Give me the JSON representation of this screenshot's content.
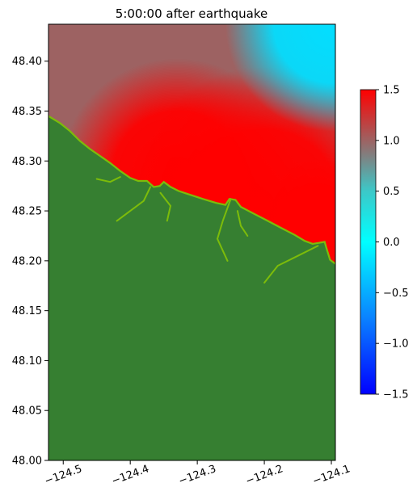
{
  "chart_data": {
    "type": "heatmap",
    "title": "5:00:00 after earthquake",
    "xlabel": "",
    "ylabel": "",
    "xlim": [
      -124.522,
      -124.094
    ],
    "ylim": [
      48.0,
      48.437
    ],
    "xticks": [
      {
        "value": -124.5,
        "label": "−124.5"
      },
      {
        "value": -124.4,
        "label": "−124.4"
      },
      {
        "value": -124.3,
        "label": "−124.3"
      },
      {
        "value": -124.2,
        "label": "−124.2"
      },
      {
        "value": -124.1,
        "label": "−124.1"
      }
    ],
    "yticks": [
      {
        "value": 48.0,
        "label": "48.00"
      },
      {
        "value": 48.05,
        "label": "48.05"
      },
      {
        "value": 48.1,
        "label": "48.10"
      },
      {
        "value": 48.15,
        "label": "48.15"
      },
      {
        "value": 48.2,
        "label": "48.20"
      },
      {
        "value": 48.25,
        "label": "48.25"
      },
      {
        "value": 48.3,
        "label": "48.30"
      },
      {
        "value": 48.35,
        "label": "48.35"
      },
      {
        "value": 48.4,
        "label": "48.40"
      }
    ],
    "colorbar": {
      "range": [
        -1.5,
        1.5
      ],
      "ticks": [
        {
          "value": 1.5,
          "label": "1.5"
        },
        {
          "value": 1.0,
          "label": "1.0"
        },
        {
          "value": 0.5,
          "label": "0.5"
        },
        {
          "value": 0.0,
          "label": "0.0"
        },
        {
          "value": -0.5,
          "label": "−0.5"
        },
        {
          "value": -1.0,
          "label": "−1.0"
        },
        {
          "value": -1.5,
          "label": "−1.5"
        }
      ],
      "colors": [
        {
          "value": -1.5,
          "color": "#0000ff"
        },
        {
          "value": -0.75,
          "color": "#0a82ff"
        },
        {
          "value": 0.0,
          "color": "#00ffff"
        },
        {
          "value": 0.5,
          "color": "#3cc8c8"
        },
        {
          "value": 0.85,
          "color": "#808080"
        },
        {
          "value": 1.5,
          "color": "#ff0000"
        }
      ]
    },
    "land_color": "#367f31",
    "shore_color": "#7dbc0a",
    "coastline": [
      [
        -124.522,
        48.345
      ],
      [
        -124.505,
        48.338
      ],
      [
        -124.49,
        48.33
      ],
      [
        -124.475,
        48.32
      ],
      [
        -124.46,
        48.312
      ],
      [
        -124.445,
        48.305
      ],
      [
        -124.43,
        48.298
      ],
      [
        -124.415,
        48.29
      ],
      [
        -124.4,
        48.283
      ],
      [
        -124.388,
        48.28
      ],
      [
        -124.375,
        48.28
      ],
      [
        -124.365,
        48.274
      ],
      [
        -124.356,
        48.275
      ],
      [
        -124.35,
        48.279
      ],
      [
        -124.34,
        48.274
      ],
      [
        -124.328,
        48.27
      ],
      [
        -124.31,
        48.266
      ],
      [
        -124.292,
        48.262
      ],
      [
        -124.272,
        48.258
      ],
      [
        -124.258,
        48.256
      ],
      [
        -124.252,
        48.262
      ],
      [
        -124.243,
        48.261
      ],
      [
        -124.235,
        48.254
      ],
      [
        -124.215,
        48.247
      ],
      [
        -124.195,
        48.24
      ],
      [
        -124.175,
        48.233
      ],
      [
        -124.155,
        48.226
      ],
      [
        -124.14,
        48.22
      ],
      [
        -124.128,
        48.217
      ],
      [
        -124.118,
        48.218
      ],
      [
        -124.11,
        48.219
      ],
      [
        -124.107,
        48.212
      ],
      [
        -124.102,
        48.201
      ],
      [
        -124.094,
        48.197
      ]
    ],
    "water_field": {
      "background": 1.0,
      "highs": [
        {
          "lon": -124.33,
          "lat": 48.285,
          "value": 1.5,
          "radius_deg": 0.11
        },
        {
          "lon": -124.2,
          "lat": 48.255,
          "value": 1.5,
          "radius_deg": 0.13
        },
        {
          "lon": -124.12,
          "lat": 48.24,
          "value": 1.5,
          "radius_deg": 0.06
        }
      ],
      "lows": [
        {
          "lon": -124.098,
          "lat": 48.437,
          "value": -0.2,
          "radius_deg": 0.1
        }
      ],
      "notes_visible": "red near shore, grey offshore, cyan in north-east corner"
    }
  }
}
